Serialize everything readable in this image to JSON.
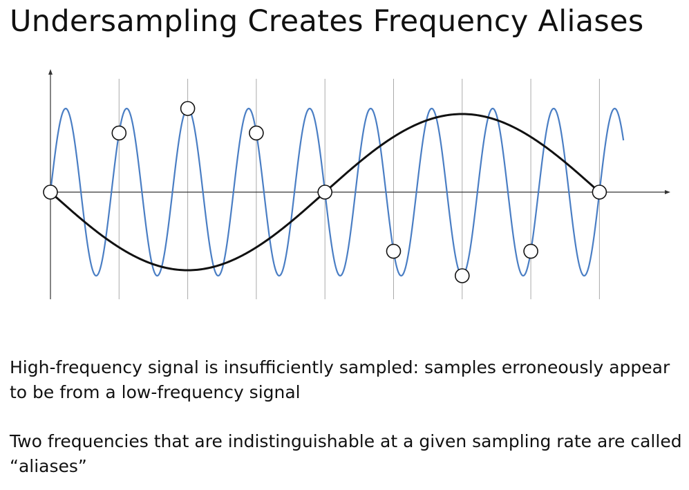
{
  "title": "Undersampling Creates Frequency Aliases",
  "colors": {
    "high_frequency_signal": "#4a7ec4",
    "low_frequency_alias": "#111111",
    "grid_lines": "#aaaaaa",
    "axis": "#333333",
    "sample_point_fill": "#ffffff"
  },
  "diagram": {
    "high_frequency_cycles_per_sample": 1.125,
    "low_frequency_cycles_per_sample": -0.125,
    "sample_count": 9
  },
  "bullets": [
    "High-frequency signal is insufficiently sampled: samples erroneously appear to be from a low-frequency signal",
    "Two frequencies that are indistinguishable at a given sampling rate are called “aliases”"
  ]
}
